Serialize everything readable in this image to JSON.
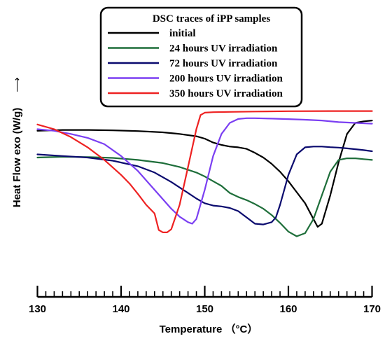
{
  "chart_data": {
    "type": "line",
    "title": "DSC traces of iPP samples",
    "xlabel": "Temperature （°C）",
    "ylabel": "Heat Flow exo  (W/g)",
    "ylabel_arrow": "⟶",
    "xlim": [
      130,
      170
    ],
    "ylim": [
      0,
      100
    ],
    "y_tick_labels_shown": false,
    "grid": false,
    "legend_position": "top-center",
    "x_ticks": [
      "130",
      "140",
      "150",
      "160",
      "170"
    ],
    "series": [
      {
        "name": "initial",
        "color": "#000000",
        "x": [
          130,
          133,
          136,
          139,
          142,
          145,
          147,
          149,
          150,
          151,
          152,
          153,
          154,
          155,
          156,
          157,
          158,
          159,
          160,
          161,
          162,
          163,
          163.5,
          164,
          165,
          166,
          167,
          168,
          169,
          170
        ],
        "y": [
          85,
          85.5,
          85.5,
          85.3,
          84.8,
          84,
          83,
          81.5,
          80,
          77.5,
          76,
          75,
          74.5,
          73.5,
          71,
          68,
          64,
          59,
          53,
          46,
          39,
          29,
          24,
          26,
          44,
          65,
          83,
          90,
          91,
          91.5
        ]
      },
      {
        "name": "24 hours UV irradiation",
        "color": "#1e6e3a",
        "x": [
          130,
          133,
          136,
          139,
          142,
          145,
          147,
          149,
          150,
          151,
          152,
          153,
          154,
          155,
          156,
          157,
          158,
          159,
          160,
          161,
          162,
          163,
          164,
          165,
          166,
          167,
          168,
          169,
          170
        ],
        "y": [
          68,
          68.5,
          68.3,
          67.8,
          66.5,
          64.5,
          62,
          58.5,
          56,
          53,
          50,
          45.5,
          43,
          41,
          38.5,
          35.5,
          31.5,
          26.5,
          21,
          18,
          20,
          29,
          44,
          59,
          66.5,
          67.5,
          67.5,
          67,
          66.5
        ]
      },
      {
        "name": "72 hours UV irradiation",
        "color": "#0a0a6e",
        "x": [
          130,
          133,
          136,
          139,
          142,
          144,
          146,
          148,
          149,
          150,
          151,
          152,
          153,
          154,
          155,
          156,
          157,
          158,
          158.5,
          159,
          160,
          161,
          162,
          163,
          164,
          165,
          166,
          167,
          168,
          169,
          170
        ],
        "y": [
          70,
          69,
          68,
          66,
          62.5,
          58.5,
          52.5,
          45.5,
          42,
          39,
          37.5,
          37,
          36,
          34,
          30,
          26,
          25.5,
          27,
          30,
          38,
          57,
          70,
          74.5,
          75,
          75,
          74.6,
          74.3,
          73.8,
          73.3,
          72.7,
          72
        ]
      },
      {
        "name": "200 hours UV irradiation",
        "color": "#7b3ff2",
        "x": [
          130,
          132,
          134,
          136,
          138,
          140,
          142,
          144,
          146,
          147,
          148,
          148.5,
          149,
          150,
          151,
          152,
          153,
          154,
          155,
          156,
          158,
          160,
          162,
          164,
          166,
          168,
          170
        ],
        "y": [
          86,
          85,
          83,
          80.5,
          76.5,
          69,
          59.5,
          47.5,
          35.5,
          30.5,
          27,
          26,
          29,
          47.5,
          69,
          83,
          90,
          92.5,
          93,
          93,
          92.7,
          92.4,
          92,
          91.5,
          90.5,
          90,
          89.5
        ]
      },
      {
        "name": "350 hours UV irradiation",
        "color": "#ee2222",
        "x": [
          130,
          132,
          134,
          136,
          138,
          140,
          141,
          142,
          143,
          144,
          144.5,
          145,
          145.5,
          146,
          147,
          148,
          149,
          149.5,
          150,
          151,
          153,
          156,
          160,
          165,
          170
        ],
        "y": [
          89,
          86,
          81,
          74.5,
          66.5,
          57,
          51.5,
          45,
          38,
          32.5,
          22,
          20.5,
          20.5,
          22.5,
          38,
          62,
          86,
          95,
          96.5,
          96.8,
          97,
          97.2,
          97.4,
          97.5,
          97.5
        ]
      }
    ]
  }
}
